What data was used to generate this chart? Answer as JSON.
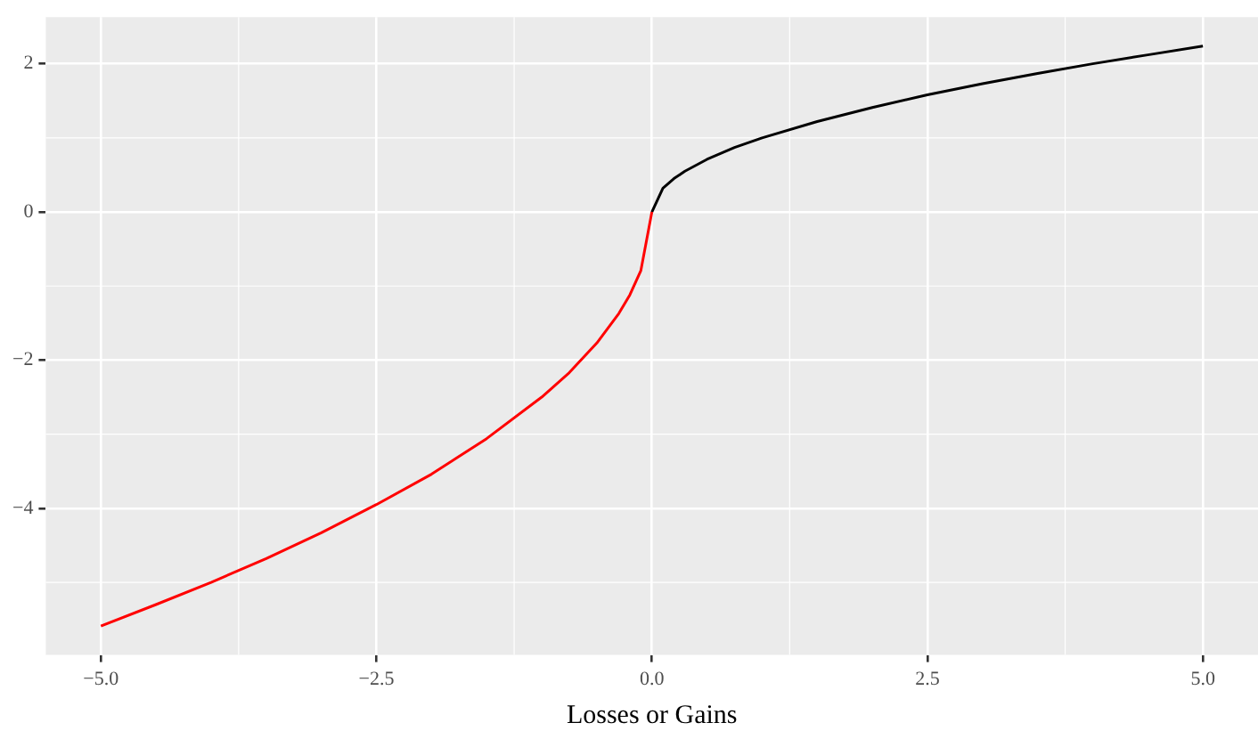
{
  "chart_data": {
    "type": "line",
    "xlabel": "Losses or Gains",
    "xlim": [
      -5.5,
      5.5
    ],
    "ylim": [
      -5.98,
      2.63
    ],
    "xticks": [
      {
        "value": -5,
        "label": "−5.0"
      },
      {
        "value": -2.5,
        "label": "−2.5"
      },
      {
        "value": 0,
        "label": "0.0"
      },
      {
        "value": 2.5,
        "label": "2.5"
      },
      {
        "value": 5,
        "label": "5.0"
      }
    ],
    "yticks": [
      {
        "value": -4,
        "label": "−4"
      },
      {
        "value": -2,
        "label": "−2"
      },
      {
        "value": 0,
        "label": "0"
      },
      {
        "value": 2,
        "label": "2"
      }
    ],
    "grid": true,
    "legend": false,
    "marker": "none",
    "line_style": "solid",
    "series": [
      {
        "color": "#ff0000",
        "x": [
          -5,
          -4.5,
          -4,
          -3.5,
          -3,
          -2.5,
          -2,
          -1.5,
          -1,
          -0.75,
          -0.5,
          -0.3,
          -0.2,
          -0.1,
          0
        ],
        "values": [
          -5.59,
          -5.3,
          -5,
          -4.68,
          -4.33,
          -3.95,
          -3.54,
          -3.06,
          -2.5,
          -2.17,
          -1.77,
          -1.37,
          -1.12,
          -0.79,
          0
        ]
      },
      {
        "color": "#000000",
        "x": [
          0,
          0.1,
          0.2,
          0.3,
          0.5,
          0.75,
          1,
          1.5,
          2,
          2.5,
          3,
          3.5,
          4,
          4.5,
          5
        ],
        "values": [
          0,
          0.32,
          0.45,
          0.55,
          0.71,
          0.87,
          1,
          1.22,
          1.41,
          1.58,
          1.73,
          1.87,
          2,
          2.12,
          2.24
        ]
      }
    ]
  }
}
